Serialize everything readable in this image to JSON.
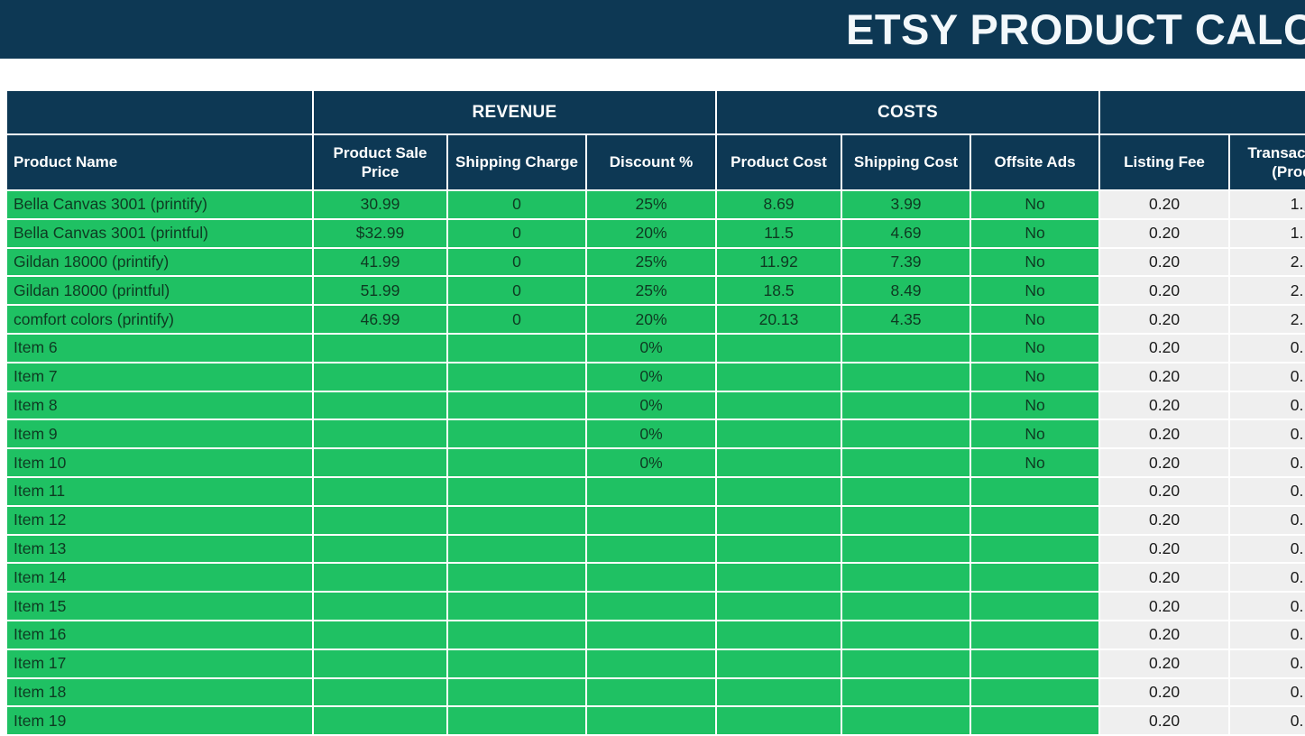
{
  "title": "ETSY PRODUCT CALCULATOR",
  "colors": {
    "navy": "#0d3854",
    "green": "#1fc163",
    "gray_cell": "#efefef",
    "header_text": "#ffffff"
  },
  "table": {
    "groups": [
      {
        "label": ""
      },
      {
        "label": "REVENUE"
      },
      {
        "label": "COSTS"
      },
      {
        "label": ""
      }
    ],
    "columns": [
      "Product Name",
      "Product Sale Price",
      "Shipping Charge",
      "Discount %",
      "Product Cost",
      "Shipping Cost",
      "Offsite Ads",
      "Listing Fee",
      "Transaction Fee (Product)"
    ],
    "rows": [
      [
        "Bella Canvas 3001 (printify)",
        "30.99",
        "0",
        "25%",
        "8.69",
        "3.99",
        "No",
        "0.20",
        "1."
      ],
      [
        "Bella Canvas 3001 (printful)",
        "$32.99",
        "0",
        "20%",
        "11.5",
        "4.69",
        "No",
        "0.20",
        "1."
      ],
      [
        "Gildan 18000 (printify)",
        "41.99",
        "0",
        "25%",
        "11.92",
        "7.39",
        "No",
        "0.20",
        "2."
      ],
      [
        "Gildan 18000 (printful)",
        "51.99",
        "0",
        "25%",
        "18.5",
        "8.49",
        "No",
        "0.20",
        "2."
      ],
      [
        "comfort colors (printify)",
        "46.99",
        "0",
        "20%",
        "20.13",
        "4.35",
        "No",
        "0.20",
        "2."
      ],
      [
        "Item 6",
        "",
        "",
        "0%",
        "",
        "",
        "No",
        "0.20",
        "0."
      ],
      [
        "Item 7",
        "",
        "",
        "0%",
        "",
        "",
        "No",
        "0.20",
        "0."
      ],
      [
        "Item 8",
        "",
        "",
        "0%",
        "",
        "",
        "No",
        "0.20",
        "0."
      ],
      [
        "Item 9",
        "",
        "",
        "0%",
        "",
        "",
        "No",
        "0.20",
        "0."
      ],
      [
        "Item 10",
        "",
        "",
        "0%",
        "",
        "",
        "No",
        "0.20",
        "0."
      ],
      [
        "Item 11",
        "",
        "",
        "",
        "",
        "",
        "",
        "0.20",
        "0."
      ],
      [
        "Item 12",
        "",
        "",
        "",
        "",
        "",
        "",
        "0.20",
        "0."
      ],
      [
        "Item 13",
        "",
        "",
        "",
        "",
        "",
        "",
        "0.20",
        "0."
      ],
      [
        "Item 14",
        "",
        "",
        "",
        "",
        "",
        "",
        "0.20",
        "0."
      ],
      [
        "Item 15",
        "",
        "",
        "",
        "",
        "",
        "",
        "0.20",
        "0."
      ],
      [
        "Item 16",
        "",
        "",
        "",
        "",
        "",
        "",
        "0.20",
        "0."
      ],
      [
        "Item 17",
        "",
        "",
        "",
        "",
        "",
        "",
        "0.20",
        "0."
      ],
      [
        "Item 18",
        "",
        "",
        "",
        "",
        "",
        "",
        "0.20",
        "0."
      ],
      [
        "Item 19",
        "",
        "",
        "",
        "",
        "",
        "",
        "0.20",
        "0."
      ]
    ]
  }
}
